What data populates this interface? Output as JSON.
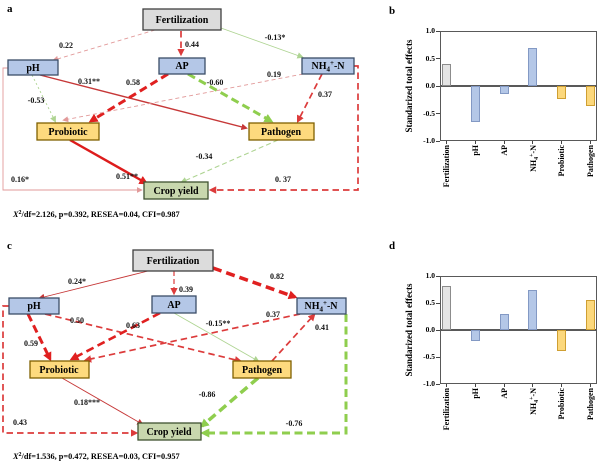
{
  "figure": {
    "panel_a": "a",
    "panel_b": "b",
    "panel_c": "c",
    "panel_d": "d"
  },
  "colors": {
    "positive_path_red": "#e02020",
    "negative_path_green": "#8fce4e",
    "box_blue": "#b4c7e7",
    "box_gray": "#dcdcdc",
    "box_yellow": "#fdda7e",
    "box_green": "#c8d7ae"
  },
  "sem_a": {
    "nodes": {
      "fertilization": "Fertilization",
      "ph": "pH",
      "ap": "AP",
      "nh4": {
        "a": "NH",
        "sub": "4",
        "sup": "+",
        "b": "-N"
      },
      "probiotic": "Probiotic",
      "pathogen": "Pathogen",
      "crop": "Crop yield"
    },
    "edges": [
      {
        "from": "Fertilization",
        "to": "pH",
        "label": "0.22"
      },
      {
        "from": "Fertilization",
        "to": "AP",
        "label": "0.44"
      },
      {
        "from": "Fertilization",
        "to": "NH4+-N",
        "label": "-0.13*"
      },
      {
        "from": "pH",
        "to": "Probiotic",
        "label": "-0.53"
      },
      {
        "from": "pH",
        "to": "Pathogen",
        "label": "0.31**"
      },
      {
        "from": "AP",
        "to": "Probiotic",
        "label": "0.58"
      },
      {
        "from": "AP",
        "to": "Pathogen",
        "label": "-0.60"
      },
      {
        "from": "NH4+-N",
        "to": "Probiotic",
        "label": "0.19"
      },
      {
        "from": "NH4+-N",
        "to": "Pathogen",
        "label": "0.37"
      },
      {
        "from": "Probiotic",
        "to": "Crop yield",
        "label": "0.51**"
      },
      {
        "from": "Pathogen",
        "to": "Crop yield",
        "label": "-0.34"
      },
      {
        "from": "pH",
        "to": "Crop yield",
        "label": "0.16*"
      },
      {
        "from": "NH4+-N",
        "to": "Crop yield",
        "label": "0. 37"
      }
    ],
    "fit": {
      "pre": "X",
      "sup": "2",
      "rest": "/df=2.126, p=0.392, RESEA=0.04, CFI=0.987"
    }
  },
  "sem_c": {
    "nodes": {
      "fertilization": "Fertilization",
      "ph": "pH",
      "ap": "AP",
      "nh4": {
        "a": "NH",
        "sub": "4",
        "sup": "+",
        "b": "-N"
      },
      "probiotic": "Probiotic",
      "pathogen": "Pathogen",
      "crop": "Crop yield"
    },
    "edges": [
      {
        "from": "Fertilization",
        "to": "pH",
        "label": "0.24*"
      },
      {
        "from": "Fertilization",
        "to": "AP",
        "label": "0.39"
      },
      {
        "from": "Fertilization",
        "to": "NH4+-N",
        "label": "0.82"
      },
      {
        "from": "pH",
        "to": "Probiotic",
        "label": "0.59"
      },
      {
        "from": "pH",
        "to": "Pathogen",
        "label": "0.50"
      },
      {
        "from": "AP",
        "to": "Probiotic",
        "label": "0.63"
      },
      {
        "from": "AP",
        "to": "Pathogen",
        "label": "-0.15**"
      },
      {
        "from": "NH4+-N",
        "to": "Probiotic",
        "label": "0.37"
      },
      {
        "from": "Pathogen",
        "to": "NH4+-N",
        "label": "0.41"
      },
      {
        "from": "Probiotic",
        "to": "Crop yield",
        "label": "0.18***"
      },
      {
        "from": "Pathogen",
        "to": "Crop yield",
        "label": "-0.86"
      },
      {
        "from": "pH",
        "to": "Crop yield",
        "label": "0.43"
      },
      {
        "from": "NH4+-N",
        "to": "Crop yield",
        "label": "-0.76"
      }
    ],
    "fit": {
      "pre": "X",
      "sup": "2",
      "rest": "/df=1.536, p=0.472, RESEA=0.03, CFI=0.957"
    }
  },
  "chart_data": [
    {
      "panel": "b",
      "type": "bar",
      "title": "",
      "xlabel": "",
      "ylabel": "Standarized total effects",
      "ylim": [
        -1.0,
        1.0
      ],
      "yticks": [
        "1.0",
        "0.5",
        "0.0",
        "-0.5",
        "-1.0"
      ],
      "grid": false,
      "categories": [
        "Fertilization",
        "pH",
        "AP",
        "NH4+-N",
        "Probiotic",
        "Pathogen"
      ],
      "categories_rich": [
        [
          "Fertilization"
        ],
        [
          "pH"
        ],
        [
          "AP"
        ],
        [
          "NH",
          {
            "sub": "4"
          },
          {
            "sup": "+"
          },
          "-N"
        ],
        [
          "Probiotic"
        ],
        [
          "Pathogen"
        ]
      ],
      "values": [
        0.4,
        -0.65,
        -0.15,
        0.7,
        -0.23,
        -0.36
      ],
      "bar_fills": [
        "#e4e4e4",
        "#b4c7e7",
        "#b4c7e7",
        "#b4c7e7",
        "#fcd87c",
        "#fcd87c"
      ],
      "bar_strokes": [
        "#8c8c8c",
        "#8399c4",
        "#8399c4",
        "#8399c4",
        "#cf9f32",
        "#cf9f32"
      ]
    },
    {
      "panel": "d",
      "type": "bar",
      "title": "",
      "xlabel": "",
      "ylabel": "Standarized total effects",
      "ylim": [
        -1.0,
        1.0
      ],
      "yticks": [
        "1.0",
        "0.5",
        "0.0",
        "-0.5",
        "-1.0"
      ],
      "grid": false,
      "categories": [
        "Fertilization",
        "pH",
        "AP",
        "NH4+-N",
        "Probiotic",
        "Pathogen"
      ],
      "categories_rich": [
        [
          "Fertilization"
        ],
        [
          "pH"
        ],
        [
          "AP"
        ],
        [
          "NH",
          {
            "sub": "4"
          },
          {
            "sup": "+"
          },
          "-N"
        ],
        [
          "Probiotic"
        ],
        [
          "Pathogen"
        ]
      ],
      "values": [
        0.82,
        -0.2,
        0.3,
        0.75,
        -0.38,
        0.55
      ],
      "bar_fills": [
        "#e4e4e4",
        "#b4c7e7",
        "#b4c7e7",
        "#b4c7e7",
        "#fcd87c",
        "#fcd87c"
      ],
      "bar_strokes": [
        "#8c8c8c",
        "#8399c4",
        "#8399c4",
        "#8399c4",
        "#cf9f32",
        "#cf9f32"
      ]
    }
  ]
}
